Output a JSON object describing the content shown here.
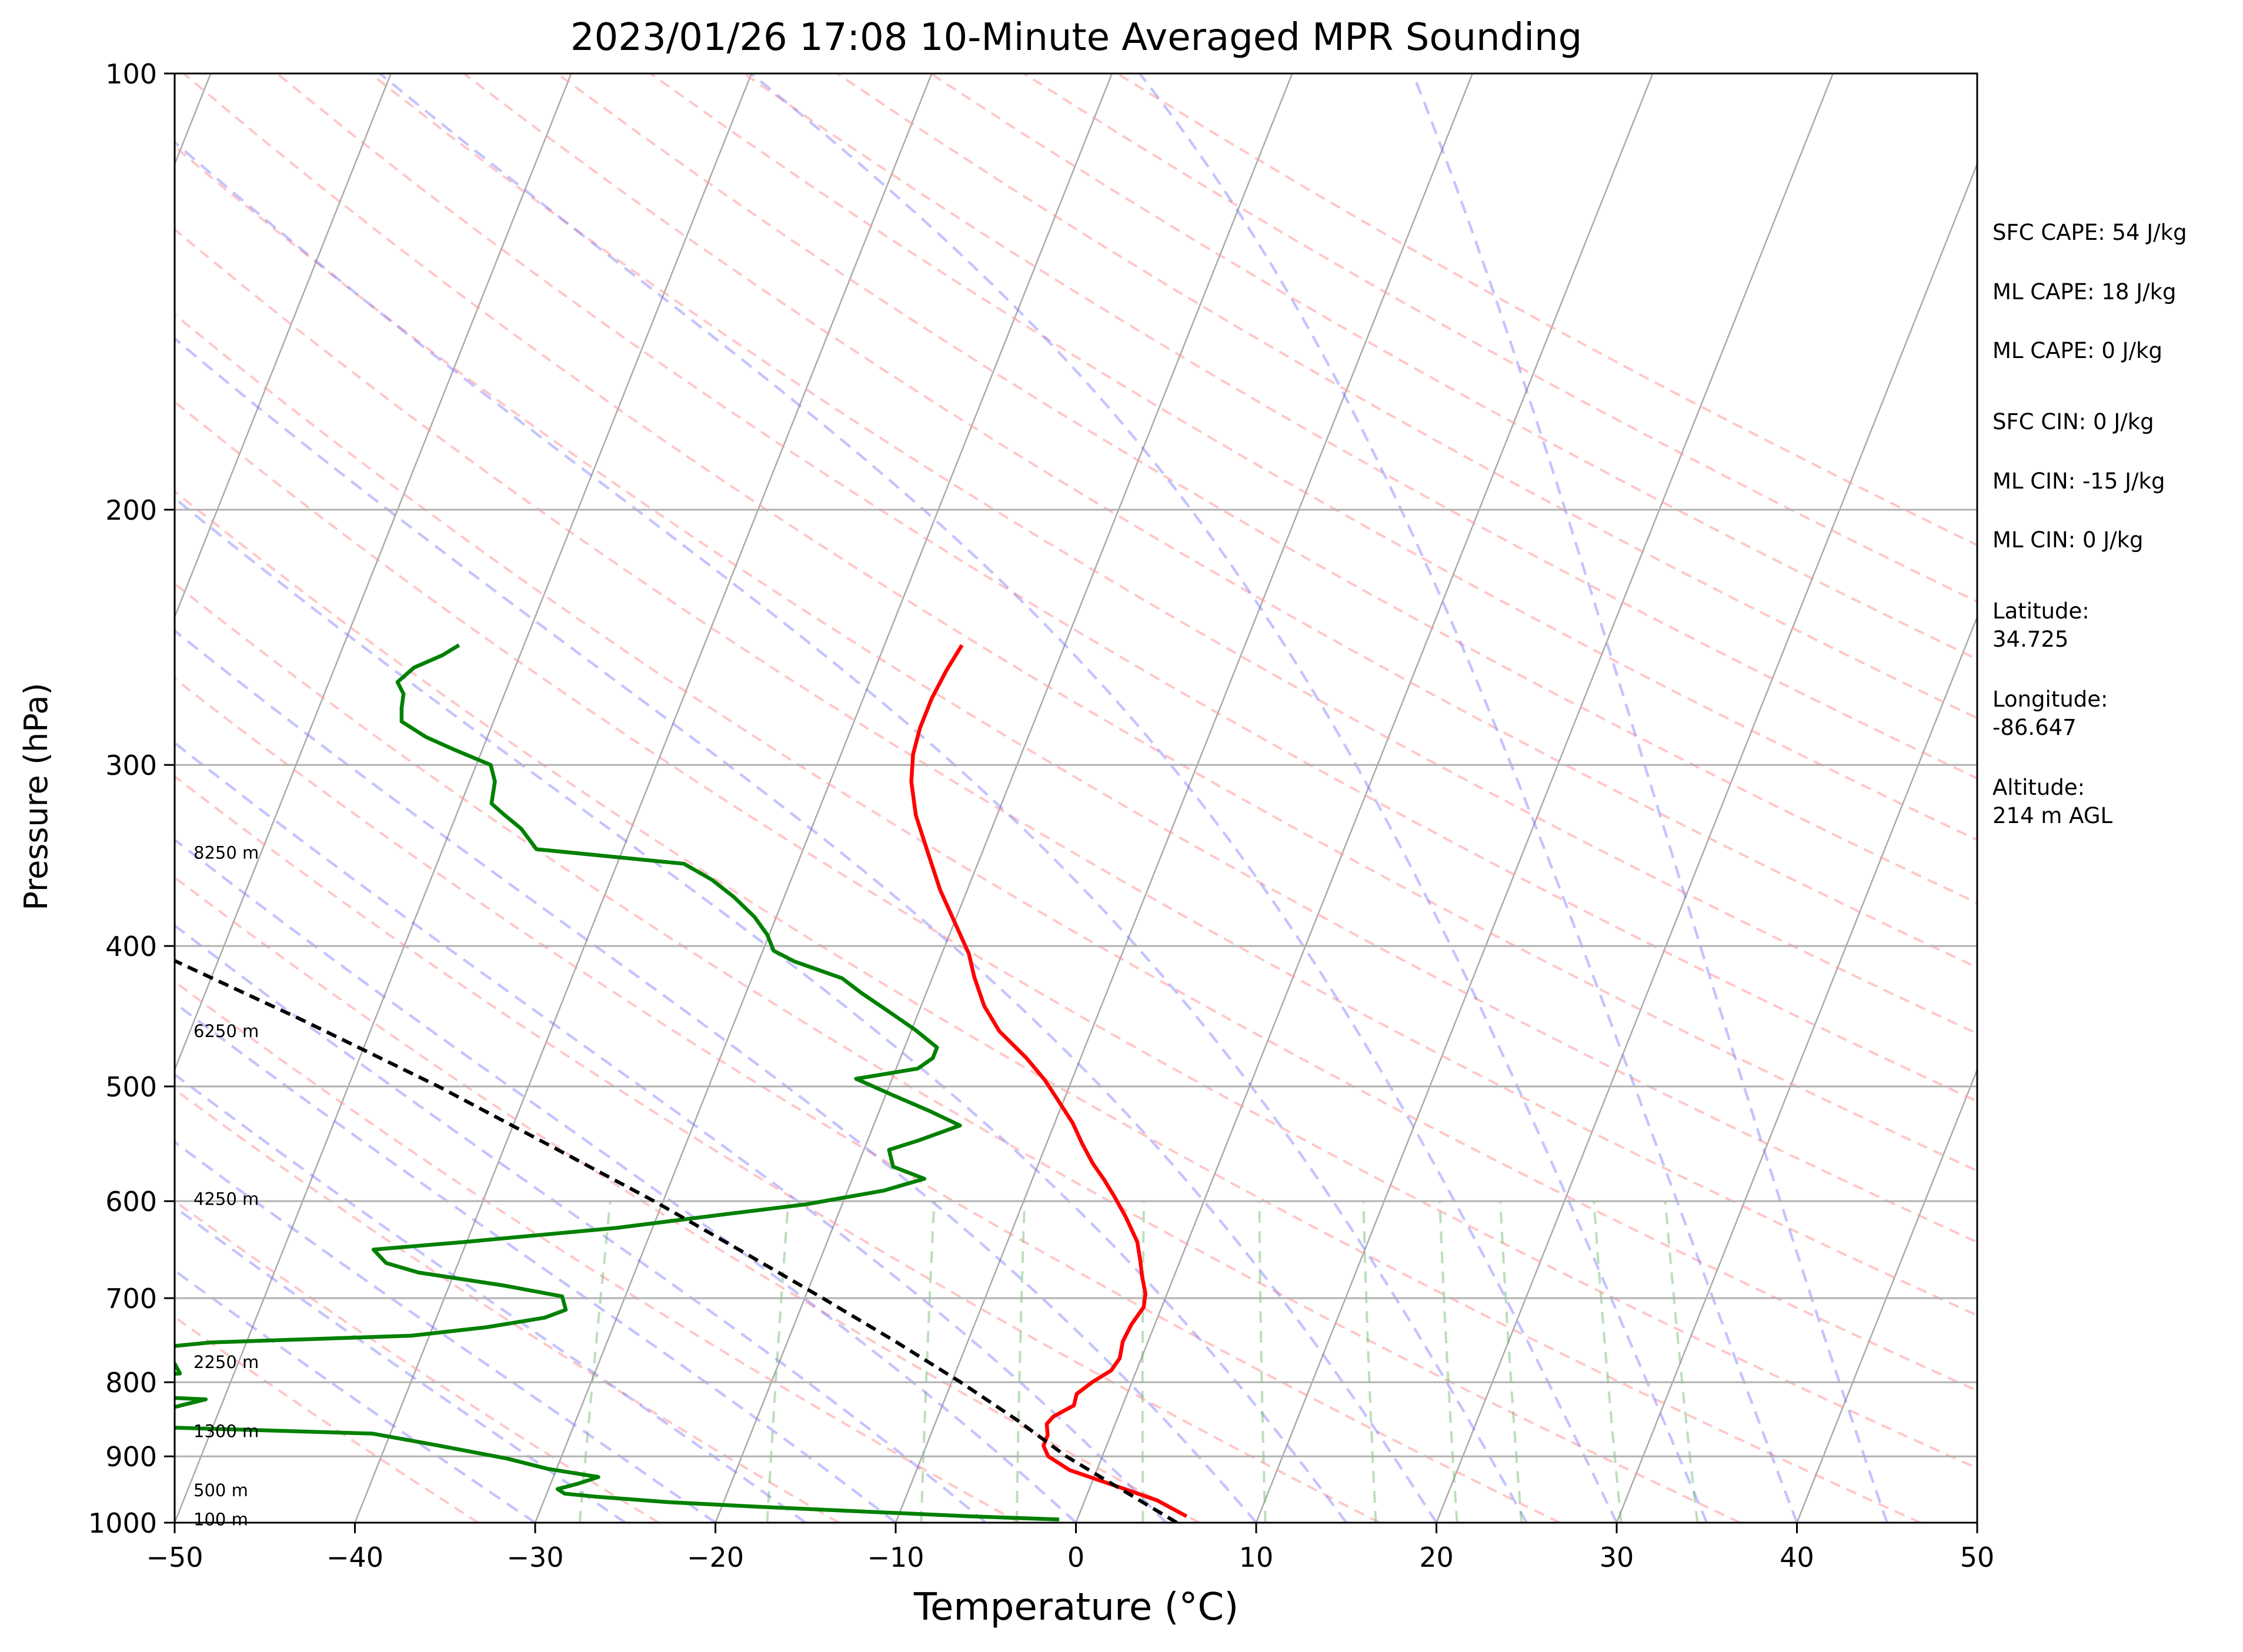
{
  "chart_data": {
    "type": "line",
    "title": "2023/01/26 17:08 10-Minute Averaged MPR Sounding",
    "xlabel": "Temperature (°C)",
    "ylabel": "Pressure (hPa)",
    "xlim": [
      -50,
      50
    ],
    "ylim": [
      1000,
      100
    ],
    "y_scale": "log",
    "x_ticks": [
      "−50",
      "−40",
      "−30",
      "−20",
      "−10",
      "0",
      "10",
      "20",
      "30",
      "40",
      "50"
    ],
    "y_ticks": [
      "100",
      "200",
      "300",
      "400",
      "500",
      "600",
      "700",
      "800",
      "900",
      "1000"
    ],
    "grid": true,
    "skew_per_decade": 32,
    "height_labels": [
      {
        "text": "8250 m",
        "p": 345
      },
      {
        "text": "6250 m",
        "p": 458
      },
      {
        "text": "4250 m",
        "p": 598
      },
      {
        "text": "2250 m",
        "p": 775
      },
      {
        "text": "1300 m",
        "p": 865
      },
      {
        "text": "500 m",
        "p": 950
      },
      {
        "text": "100 m",
        "p": 995
      }
    ],
    "series": [
      {
        "name": "",
        "color": "#ff0000",
        "points": [
          [
            6,
            990
          ],
          [
            4,
            965
          ],
          [
            1,
            940
          ],
          [
            -1.5,
            920
          ],
          [
            -3,
            900
          ],
          [
            -3.5,
            885
          ],
          [
            -3.5,
            870
          ],
          [
            -3.8,
            855
          ],
          [
            -3.6,
            845
          ],
          [
            -2.7,
            830
          ],
          [
            -2.8,
            815
          ],
          [
            -2.2,
            800
          ],
          [
            -1.4,
            785
          ],
          [
            -1.2,
            770
          ],
          [
            -1.4,
            750
          ],
          [
            -1.3,
            730
          ],
          [
            -1.0,
            710
          ],
          [
            -1.2,
            695
          ],
          [
            -1.8,
            675
          ],
          [
            -2.2,
            660
          ],
          [
            -2.8,
            640
          ],
          [
            -4,
            615
          ],
          [
            -5.1,
            595
          ],
          [
            -6,
            580
          ],
          [
            -7,
            565
          ],
          [
            -8,
            548
          ],
          [
            -9,
            530
          ],
          [
            -10.4,
            510
          ],
          [
            -11.5,
            495
          ],
          [
            -13,
            478
          ],
          [
            -15.1,
            458
          ],
          [
            -16.5,
            440
          ],
          [
            -17.7,
            420
          ],
          [
            -18.5,
            405
          ],
          [
            -20,
            385
          ],
          [
            -21.5,
            366
          ],
          [
            -23,
            345
          ],
          [
            -24.5,
            325
          ],
          [
            -25.5,
            308
          ],
          [
            -26,
            295
          ],
          [
            -26.2,
            283
          ],
          [
            -26.2,
            270
          ],
          [
            -26,
            258
          ],
          [
            -25.7,
            248
          ]
        ]
      },
      {
        "name": "",
        "color": "#008000",
        "points": [
          [
            -1,
            995
          ],
          [
            -6,
            990
          ],
          [
            -10,
            985
          ],
          [
            -14,
            980
          ],
          [
            -18,
            975
          ],
          [
            -23,
            968
          ],
          [
            -27,
            960
          ],
          [
            -29,
            955
          ],
          [
            -29.5,
            948
          ],
          [
            -28.5,
            940
          ],
          [
            -27.5,
            930
          ],
          [
            -30.5,
            918
          ],
          [
            -33,
            903
          ],
          [
            -37,
            885
          ],
          [
            -41,
            868
          ],
          [
            -52,
            860
          ],
          [
            -70,
            855
          ],
          [
            -71,
            848
          ],
          [
            -62,
            842
          ],
          [
            -53,
            835
          ],
          [
            -51,
            822
          ],
          [
            -58,
            815
          ],
          [
            -64.5,
            808
          ],
          [
            -60,
            799
          ],
          [
            -53,
            789
          ],
          [
            -53.5,
            777
          ],
          [
            -56,
            760
          ],
          [
            -52,
            751
          ],
          [
            -41,
            743
          ],
          [
            -37,
            733
          ],
          [
            -34,
            722
          ],
          [
            -33,
            713
          ],
          [
            -33.5,
            698
          ],
          [
            -37,
            686
          ],
          [
            -42,
            672
          ],
          [
            -44,
            662
          ],
          [
            -45,
            648
          ],
          [
            -40,
            640
          ],
          [
            -32,
            626
          ],
          [
            -26,
            612
          ],
          [
            -22,
            603
          ],
          [
            -18,
            590
          ],
          [
            -16,
            579
          ],
          [
            -18,
            568
          ],
          [
            -18.6,
            553
          ],
          [
            -17.2,
            545
          ],
          [
            -15.2,
            532
          ],
          [
            -17.2,
            520
          ],
          [
            -19.6,
            507
          ],
          [
            -22,
            494
          ],
          [
            -18.8,
            486
          ],
          [
            -18.2,
            478
          ],
          [
            -18.2,
            470
          ],
          [
            -19.8,
            457
          ],
          [
            -21.8,
            443
          ],
          [
            -23.6,
            431
          ],
          [
            -25,
            421
          ],
          [
            -28,
            410
          ],
          [
            -29.4,
            403
          ],
          [
            -30.1,
            393
          ],
          [
            -31.2,
            382
          ],
          [
            -32.8,
            370
          ],
          [
            -34.4,
            360
          ],
          [
            -36.3,
            351
          ],
          [
            -44.8,
            343
          ],
          [
            -46.1,
            332
          ],
          [
            -47.3,
            325
          ],
          [
            -48.3,
            319
          ],
          [
            -48.6,
            308
          ],
          [
            -49.2,
            300
          ],
          [
            -51.5,
            293
          ],
          [
            -53.4,
            287
          ],
          [
            -55.1,
            280
          ],
          [
            -55.4,
            274
          ],
          [
            -55.6,
            268
          ],
          [
            -56.2,
            263
          ],
          [
            -55.6,
            257
          ],
          [
            -54.3,
            252
          ],
          [
            -53.6,
            248
          ]
        ]
      },
      {
        "name": "",
        "color": "#000000",
        "dashed": true,
        "points": [
          [
            5.6,
            1000
          ],
          [
            -2,
            900
          ],
          [
            -5.5,
            850
          ],
          [
            -9.5,
            800
          ],
          [
            -14,
            750
          ],
          [
            -19,
            700
          ],
          [
            -24.5,
            650
          ],
          [
            -30.5,
            600
          ],
          [
            -37.4,
            550
          ],
          [
            -45,
            500
          ],
          [
            -54,
            450
          ],
          [
            -64.5,
            400
          ],
          [
            -77,
            350
          ],
          [
            -91,
            300
          ],
          [
            -101,
            270
          ],
          [
            -108,
            250
          ]
        ]
      }
    ]
  },
  "side_info": [
    "SFC CAPE: 54 J/kg",
    "ML CAPE: 18 J/kg",
    "ML CAPE: 0 J/kg",
    "SFC CIN: 0 J/kg",
    "ML CIN: -15 J/kg",
    "ML CIN: 0 J/kg",
    "Latitude:",
    "34.725",
    "Longitude:",
    "-86.647",
    "Altitude:",
    "214 m AGL"
  ]
}
